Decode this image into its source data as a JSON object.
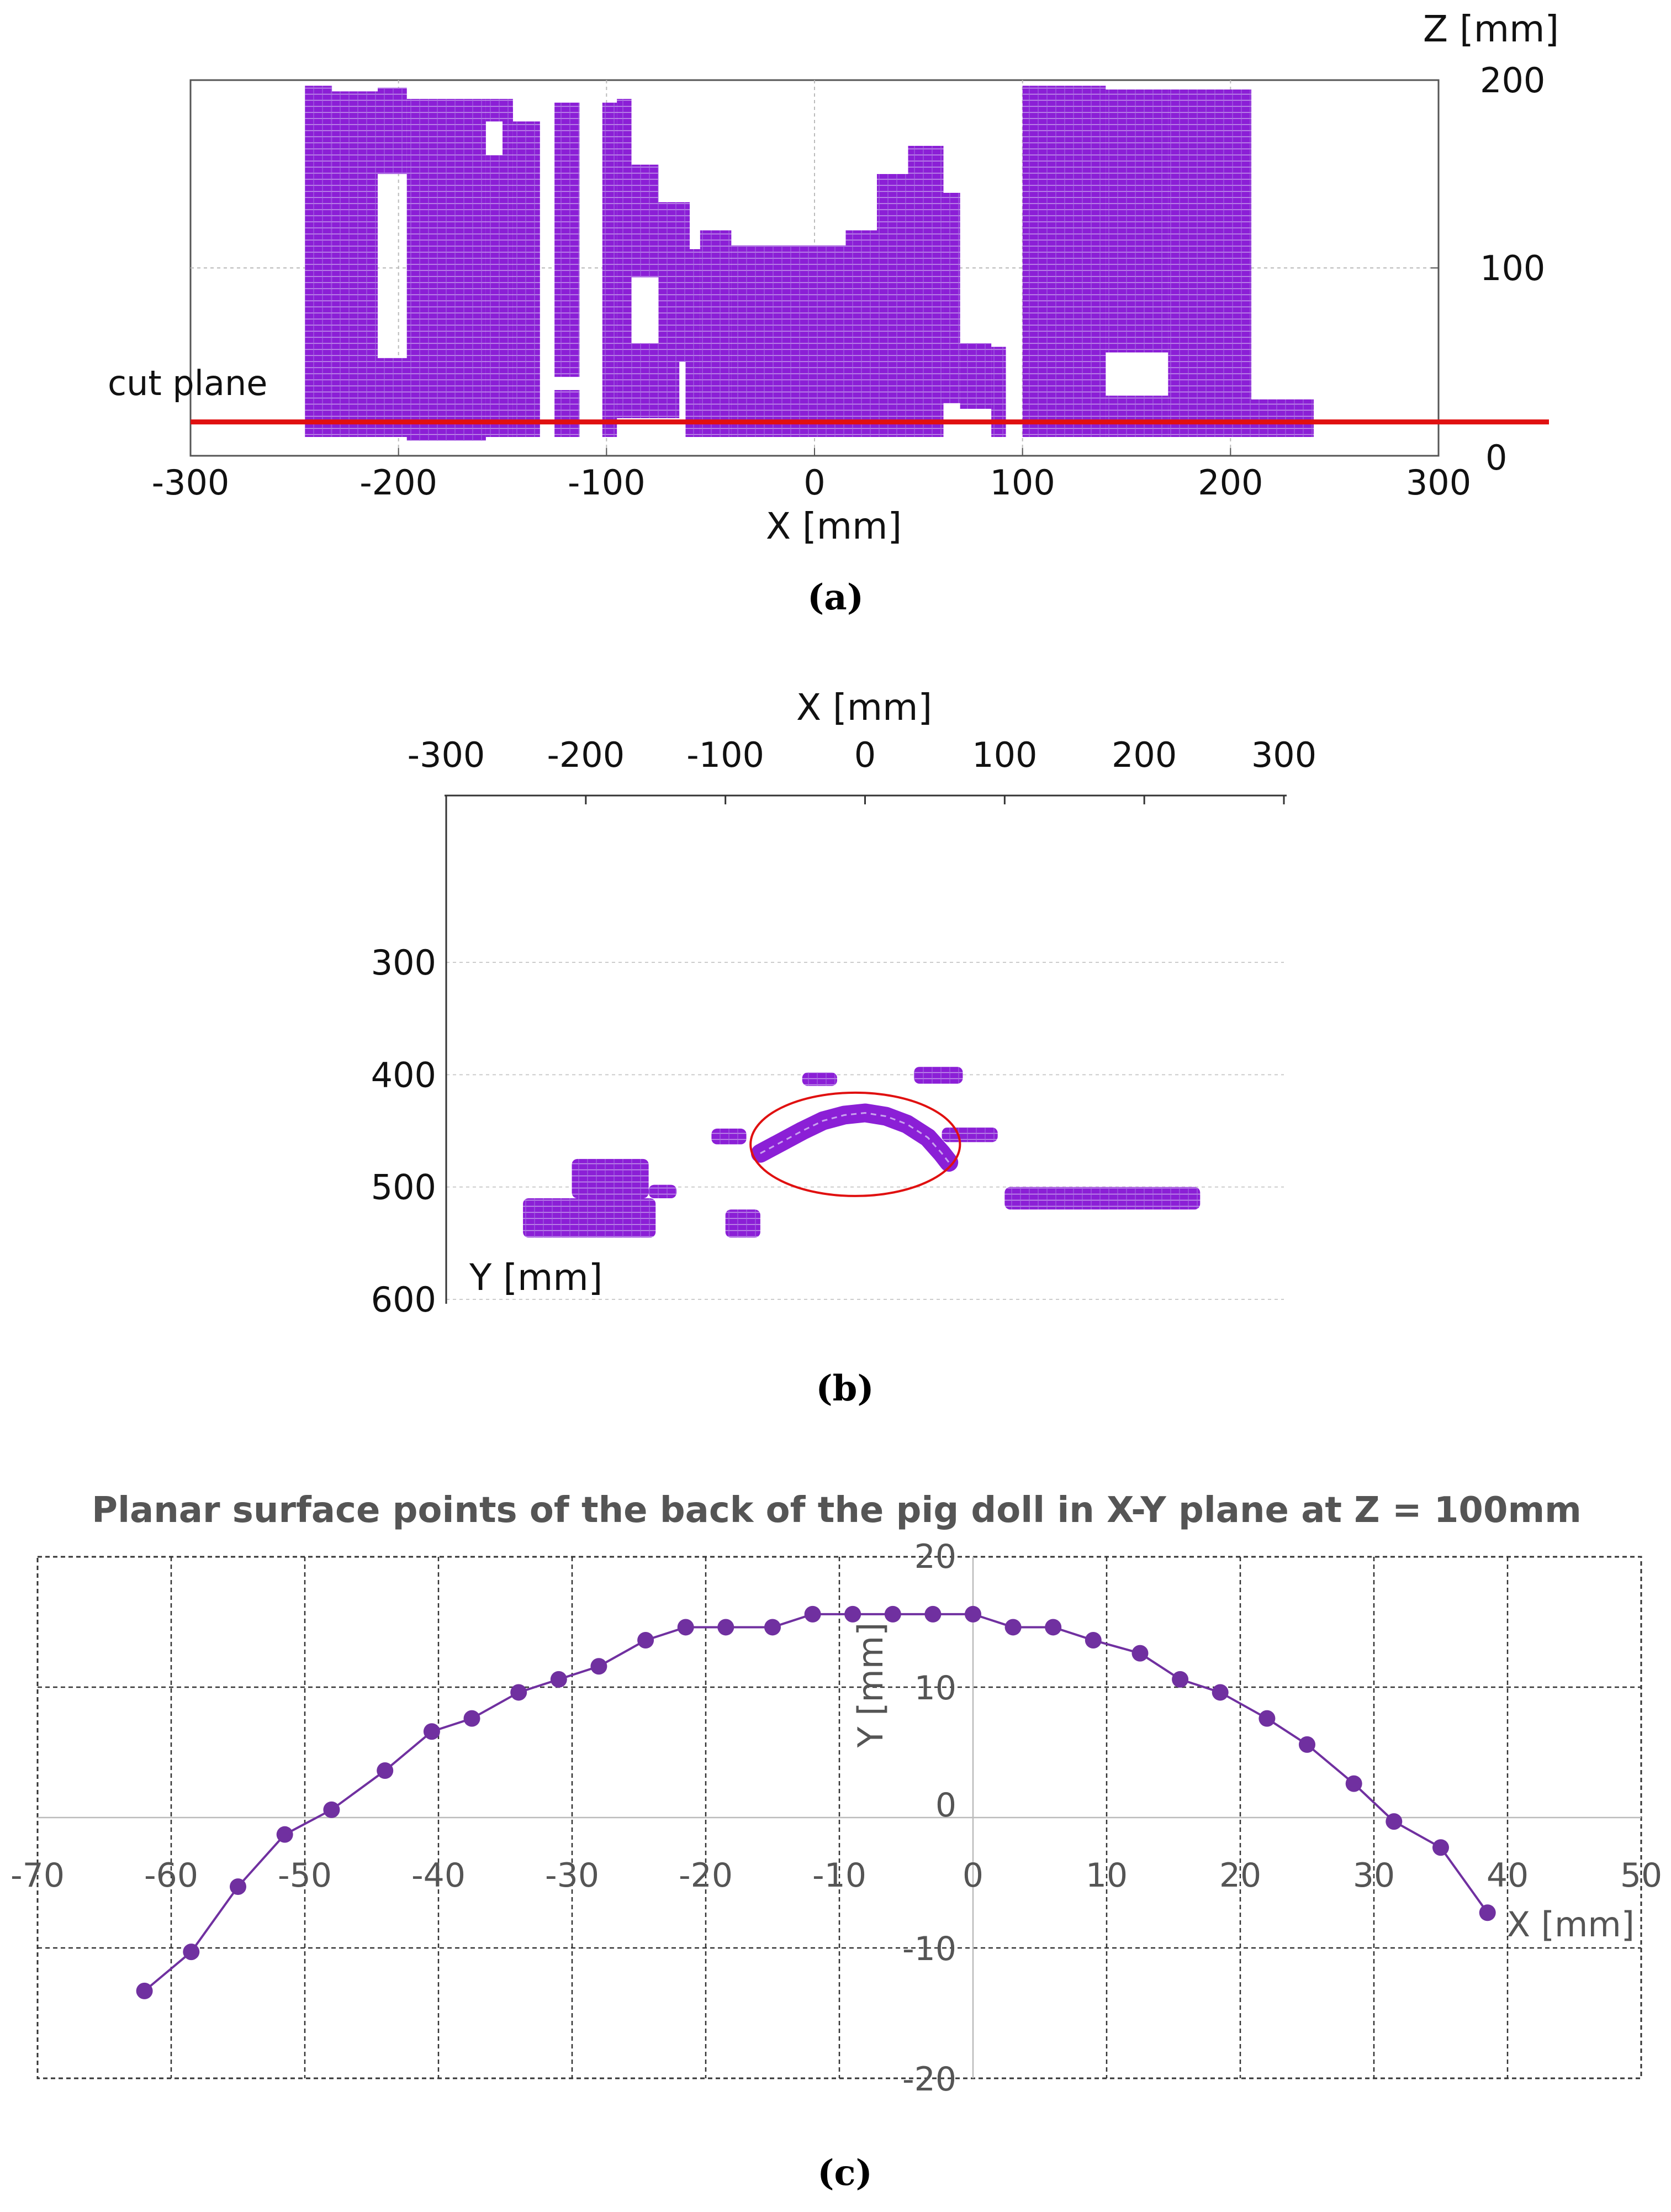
{
  "chart_data": [
    {
      "type": "scatter",
      "panel_label": "(a)",
      "xlabel": "X [mm]",
      "zlabel": "Z [mm]",
      "xlim": [
        -300,
        300
      ],
      "zlim": [
        0,
        200
      ],
      "x_ticks": [
        "-300",
        "-200",
        "-100",
        "0",
        "100",
        "200",
        "300"
      ],
      "z_ticks": [
        "0",
        "100",
        "200"
      ],
      "grid": true,
      "point_color": "#8b1fd6",
      "annotation": {
        "text": "cut plane",
        "z": 18,
        "color": "#e01010"
      },
      "point_regions": [
        {
          "x0": -245,
          "x1": -232,
          "z0": 10,
          "z1": 197
        },
        {
          "x0": -232,
          "x1": -210,
          "z0": 10,
          "z1": 194
        },
        {
          "x0": -210,
          "x1": -195,
          "z0": 10,
          "z1": 52
        },
        {
          "x0": -210,
          "x1": -196,
          "z0": 150,
          "z1": 196
        },
        {
          "x0": -196,
          "x1": -158,
          "z0": 8,
          "z1": 190
        },
        {
          "x0": -158,
          "x1": -150,
          "z0": 10,
          "z1": 160
        },
        {
          "x0": -150,
          "x1": -145,
          "z0": 10,
          "z1": 185
        },
        {
          "x0": -158,
          "x1": -145,
          "z0": 178,
          "z1": 190
        },
        {
          "x0": -145,
          "x1": -132,
          "z0": 10,
          "z1": 178
        },
        {
          "x0": -125,
          "x1": -113,
          "z0": 42,
          "z1": 188
        },
        {
          "x0": -125,
          "x1": -113,
          "z0": 10,
          "z1": 35
        },
        {
          "x0": -102,
          "x1": -95,
          "z0": 10,
          "z1": 188
        },
        {
          "x0": -95,
          "x1": -88,
          "z0": 55,
          "z1": 190
        },
        {
          "x0": -98,
          "x1": -60,
          "z0": 50,
          "z1": 60
        },
        {
          "x0": -95,
          "x1": -65,
          "z0": 20,
          "z1": 50
        },
        {
          "x0": -88,
          "x1": -75,
          "z0": 95,
          "z1": 155
        },
        {
          "x0": -75,
          "x1": -60,
          "z0": 60,
          "z1": 135
        },
        {
          "x0": -62,
          "x1": -55,
          "z0": 10,
          "z1": 110
        },
        {
          "x0": -55,
          "x1": -40,
          "z0": 10,
          "z1": 120
        },
        {
          "x0": -40,
          "x1": 15,
          "z0": 10,
          "z1": 112
        },
        {
          "x0": 15,
          "x1": 30,
          "z0": 10,
          "z1": 120
        },
        {
          "x0": 30,
          "x1": 45,
          "z0": 10,
          "z1": 150
        },
        {
          "x0": 45,
          "x1": 62,
          "z0": 10,
          "z1": 165
        },
        {
          "x0": 62,
          "x1": 70,
          "z0": 28,
          "z1": 140
        },
        {
          "x0": 70,
          "x1": 85,
          "z0": 25,
          "z1": 60
        },
        {
          "x0": 85,
          "x1": 92,
          "z0": 10,
          "z1": 58
        },
        {
          "x0": 100,
          "x1": 140,
          "z0": 10,
          "z1": 197
        },
        {
          "x0": 140,
          "x1": 170,
          "z0": 55,
          "z1": 195
        },
        {
          "x0": 170,
          "x1": 210,
          "z0": 10,
          "z1": 195
        },
        {
          "x0": 140,
          "x1": 170,
          "z0": 10,
          "z1": 32
        },
        {
          "x0": 210,
          "x1": 240,
          "z0": 10,
          "z1": 30
        }
      ]
    },
    {
      "type": "scatter",
      "panel_label": "(b)",
      "xlabel": "X [mm]",
      "ylabel": "Y [mm]",
      "xlim": [
        -300,
        300
      ],
      "ylim": [
        600,
        250
      ],
      "x_ticks": [
        "-300",
        "-200",
        "-100",
        "0",
        "100",
        "200",
        "300"
      ],
      "y_ticks": [
        "300",
        "400",
        "500",
        "600"
      ],
      "grid": true,
      "point_color": "#8b1fd6",
      "highlight": {
        "shape": "ellipse",
        "cx": -7,
        "cy": 462,
        "rx": 75,
        "ry": 46,
        "color": "#e01010"
      },
      "point_clusters": [
        {
          "x0": -245,
          "x1": -150,
          "y0": 510,
          "y1": 545
        },
        {
          "x0": -210,
          "x1": -155,
          "y0": 475,
          "y1": 510
        },
        {
          "x0": -155,
          "x1": -135,
          "y0": 498,
          "y1": 510
        },
        {
          "x0": -100,
          "x1": -75,
          "y0": 520,
          "y1": 545
        },
        {
          "x0": -110,
          "x1": -85,
          "y0": 448,
          "y1": 462
        },
        {
          "x0": -45,
          "x1": -20,
          "y0": 398,
          "y1": 410
        },
        {
          "x0": 35,
          "x1": 70,
          "y0": 393,
          "y1": 408
        },
        {
          "x0": 55,
          "x1": 95,
          "y0": 447,
          "y1": 460
        },
        {
          "x0": 100,
          "x1": 240,
          "y0": 500,
          "y1": 520
        }
      ],
      "arc_points": [
        [
          -75,
          470
        ],
        [
          -60,
          460
        ],
        [
          -45,
          450
        ],
        [
          -30,
          441
        ],
        [
          -15,
          436
        ],
        [
          0,
          434
        ],
        [
          15,
          437
        ],
        [
          30,
          444
        ],
        [
          45,
          456
        ],
        [
          55,
          470
        ],
        [
          60,
          478
        ]
      ]
    },
    {
      "type": "line",
      "panel_label": "(c)",
      "title": "Planar surface points of the back of the pig doll in X-Y plane at Z = 100mm",
      "xlabel": "X [mm]",
      "ylabel": "Y [mm]",
      "xlim": [
        -70,
        50
      ],
      "ylim": [
        -20,
        20
      ],
      "x_ticks": [
        "-70",
        "-60",
        "-50",
        "-40",
        "-30",
        "-20",
        "-10",
        "0",
        "10",
        "20",
        "30",
        "40",
        "50"
      ],
      "y_ticks": [
        "-20",
        "-10",
        "0",
        "10",
        "20"
      ],
      "grid": true,
      "series": [
        {
          "color": "#7030a0",
          "x": [
            -62,
            -58.5,
            -55,
            -51.5,
            -48,
            -44,
            -40.5,
            -37.5,
            -34,
            -31,
            -28,
            -24.5,
            -21.5,
            -18.5,
            -15,
            -12,
            -9,
            -6,
            -3,
            0,
            3,
            6,
            9,
            12.5,
            15.5,
            18.5,
            22,
            25,
            28.5,
            31.5,
            35,
            38.5
          ],
          "y": [
            -13.3,
            -10.3,
            -5.3,
            -1.3,
            0.6,
            3.6,
            6.6,
            7.6,
            9.6,
            10.6,
            11.6,
            13.6,
            14.6,
            14.6,
            14.6,
            15.6,
            15.6,
            15.6,
            15.6,
            15.6,
            14.6,
            14.6,
            13.6,
            12.6,
            10.6,
            9.6,
            7.6,
            5.6,
            2.6,
            -0.3,
            -2.3,
            -7.3
          ]
        }
      ]
    }
  ]
}
